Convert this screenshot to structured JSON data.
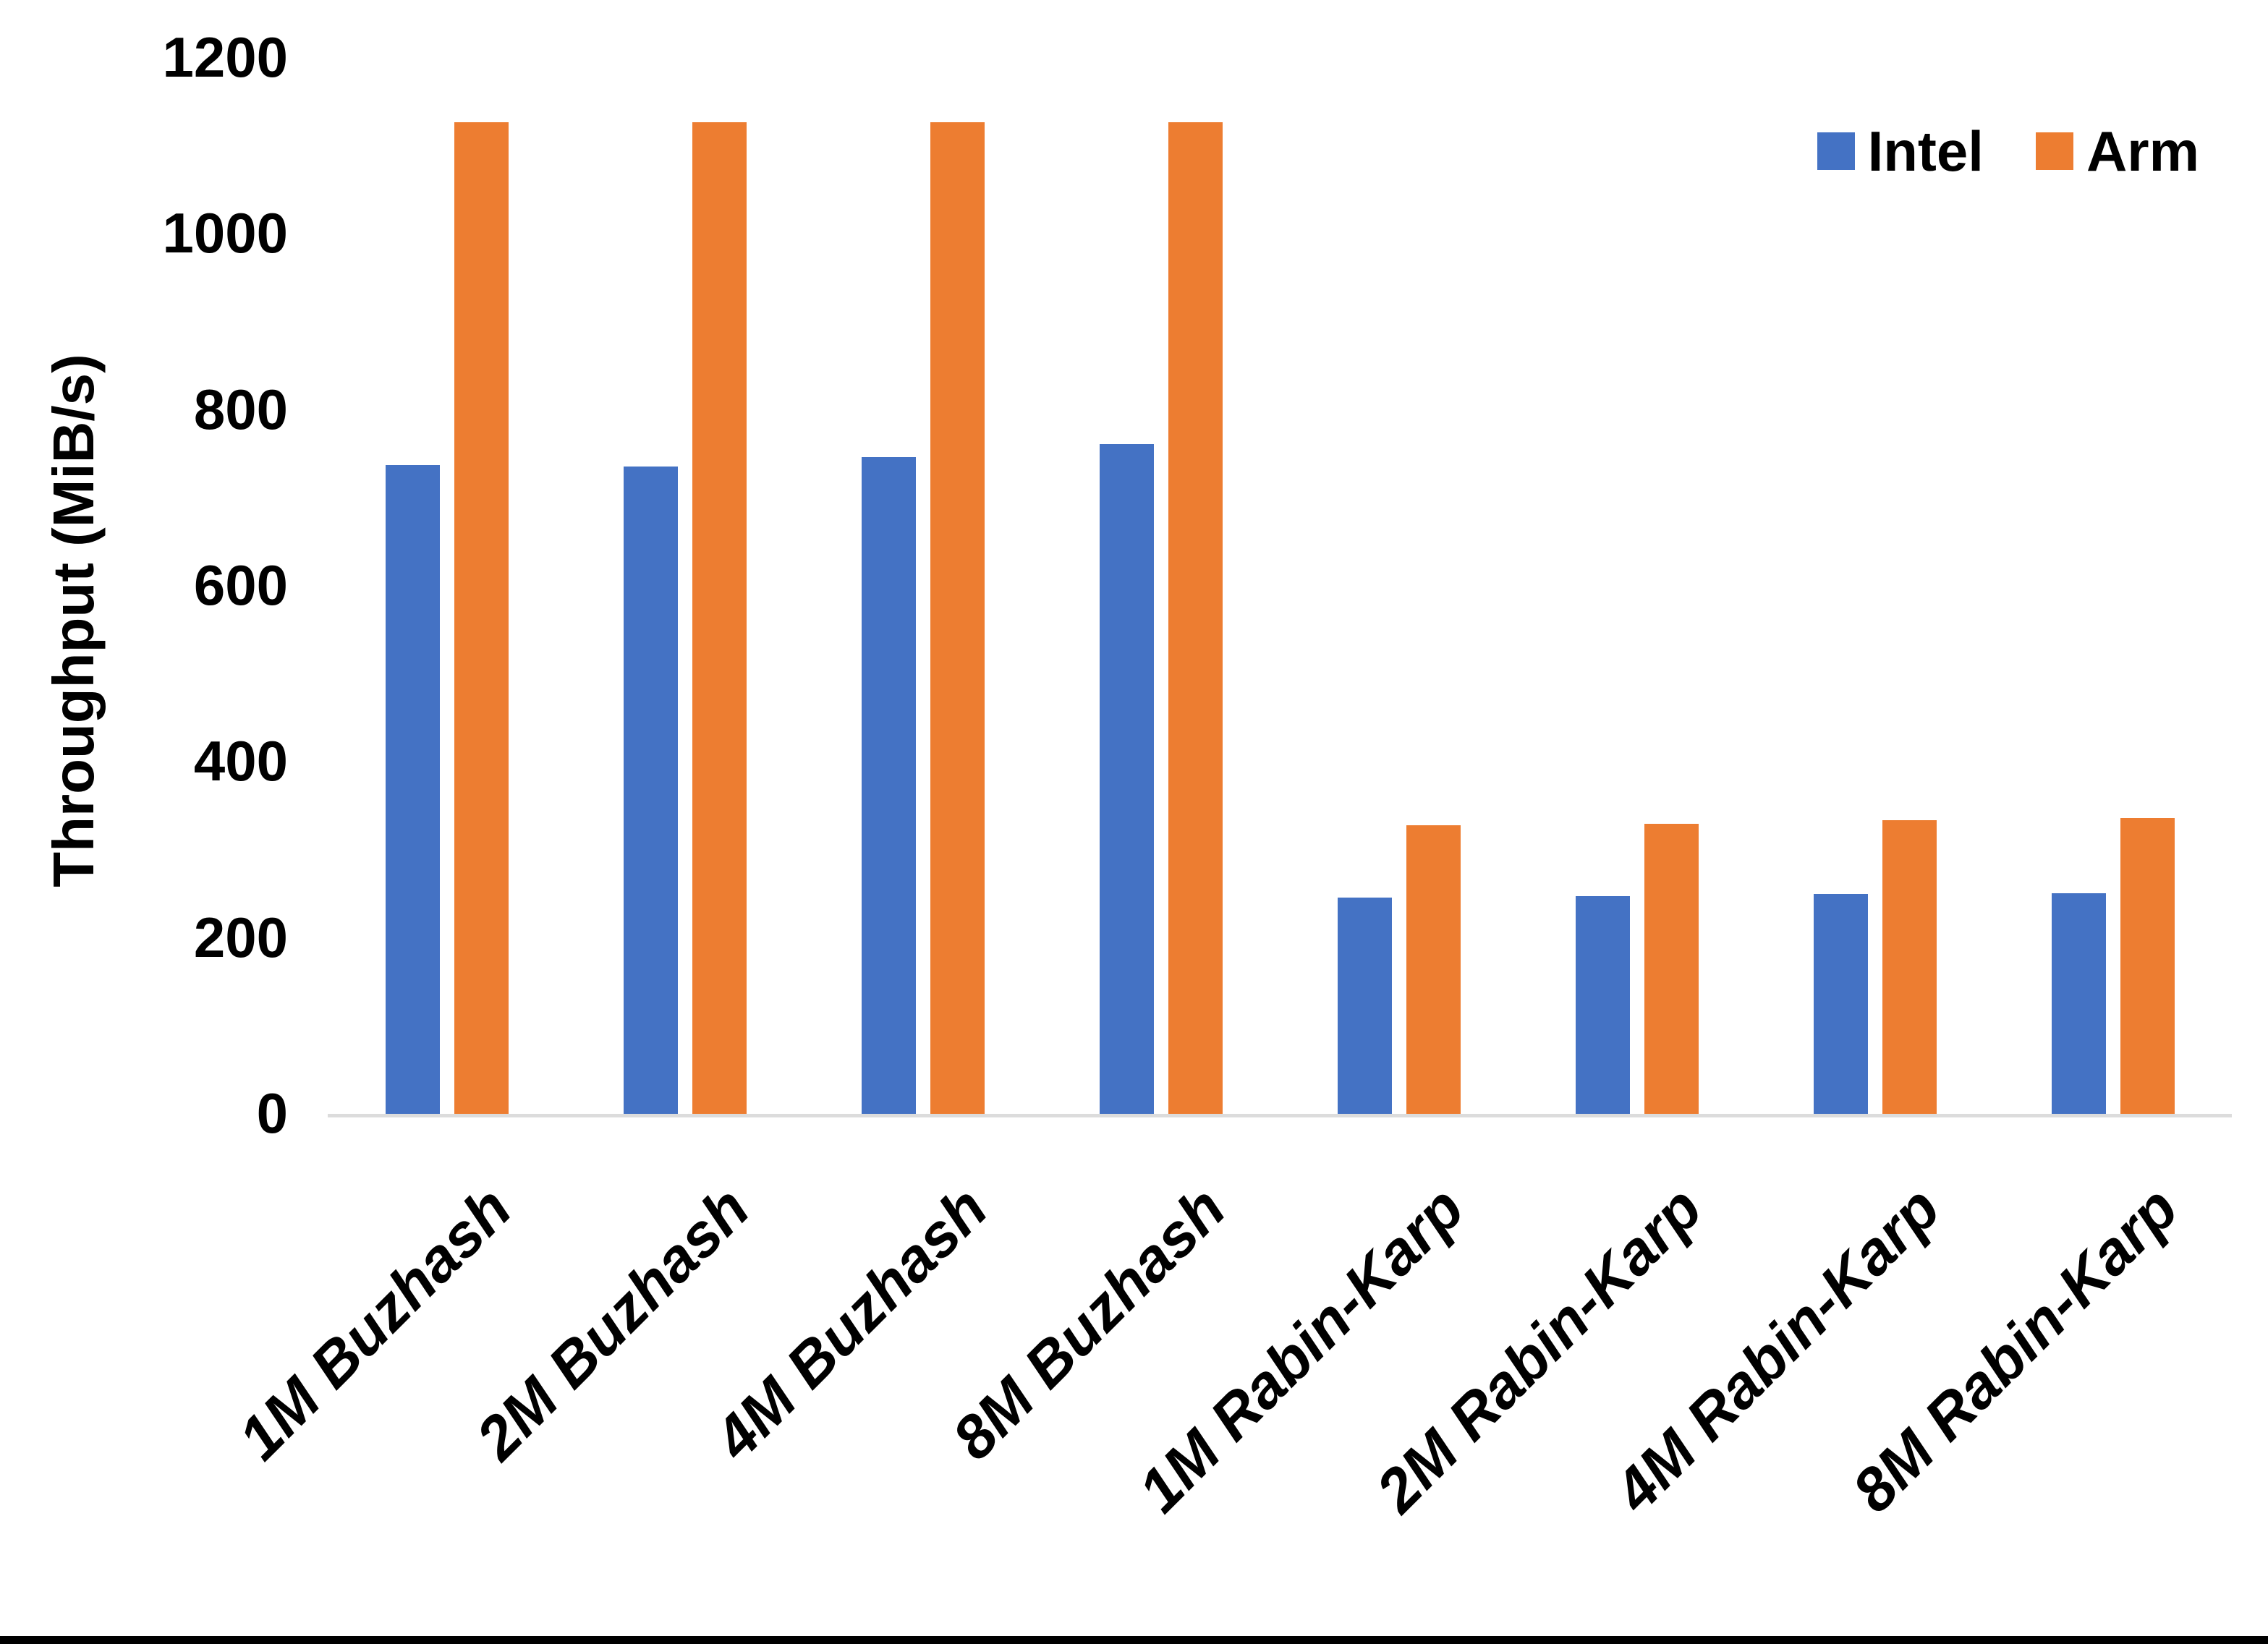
{
  "chart_data": {
    "type": "bar",
    "title": "",
    "xlabel": "",
    "ylabel": "Throughput (MiB/s)",
    "ylim": [
      0,
      1200
    ],
    "yticks": [
      0,
      200,
      400,
      600,
      800,
      1000,
      1200
    ],
    "grid": false,
    "legend_position": "top-right",
    "categories": [
      "1M Buzhash",
      "2M Buzhash",
      "4M Buzhash",
      "8M Buzhash",
      "1M Rabin-Karp",
      "2M Rabin-Karp",
      "4M Rabin-Karp",
      "8M Rabin-Karp"
    ],
    "series": [
      {
        "name": "Intel",
        "color": "#4472C4",
        "values": [
          737,
          736,
          746,
          761,
          246,
          247,
          250,
          251
        ]
      },
      {
        "name": "Arm",
        "color": "#ED7D31",
        "values": [
          1127,
          1127,
          1127,
          1127,
          328,
          330,
          334,
          336
        ]
      }
    ],
    "axis_line_color": "#DCDCDC",
    "background": "#FFFFFF"
  },
  "y_axis": {
    "title": "Throughput (MiB/s)",
    "tick_labels": [
      "0",
      "200",
      "400",
      "600",
      "800",
      "1000",
      "1200"
    ]
  },
  "x_axis": {
    "labels": [
      "1M Buzhash",
      "2M Buzhash",
      "4M Buzhash",
      "8M Buzhash",
      "1M Rabin-Karp",
      "2M Rabin-Karp",
      "4M Rabin-Karp",
      "8M Rabin-Karp"
    ]
  },
  "legend": {
    "items": [
      {
        "label": "Intel",
        "color": "#4472C4"
      },
      {
        "label": "Arm",
        "color": "#ED7D31"
      }
    ]
  },
  "frame": {
    "bottom_border_color": "#000000"
  }
}
